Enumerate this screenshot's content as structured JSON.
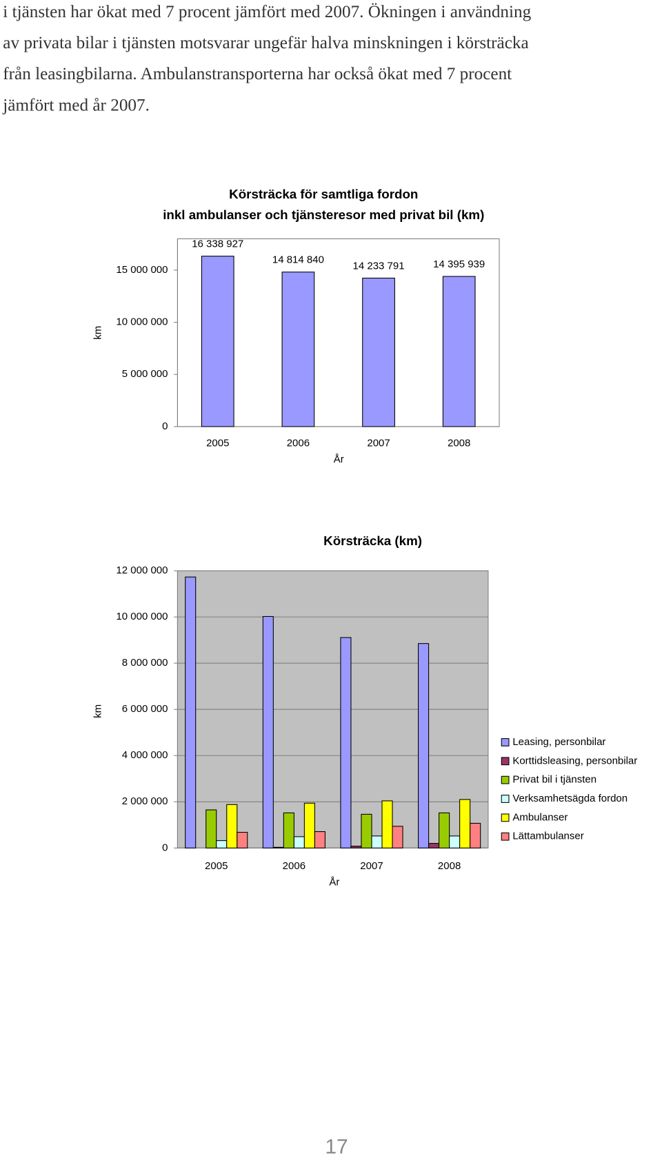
{
  "text": [
    "i tjänsten har ökat med 7 procent jämfört med 2007. Ökningen i användning",
    "av privata bilar i tjänsten motsvarar ungefär halva minskningen i körsträcka",
    "från leasingbilarna. Ambulanstransporterna har också ökat med 7 procent",
    "jämfört med år 2007."
  ],
  "chart_data": [
    {
      "type": "bar",
      "title": [
        "Körsträcka för samtliga fordon",
        "inkl ambulanser och tjänsteresor med privat bil (km)"
      ],
      "categories": [
        "2005",
        "2006",
        "2007",
        "2008"
      ],
      "values": [
        16338927,
        14814840,
        14233791,
        14395939
      ],
      "value_labels": [
        "16 338 927",
        "14 814 840",
        "14 233 791",
        "14 395 939"
      ],
      "color": "#9999ff",
      "xlabel": "År",
      "ylabel": "km",
      "ylim": [
        0,
        18000000
      ],
      "yticks": [
        0,
        {
          "value": 5000000,
          "label": "5 000 000"
        },
        {
          "value": 10000000,
          "label": "10 000 000"
        },
        {
          "value": 15000000,
          "label": "15 000 000"
        }
      ],
      "grid": false
    },
    {
      "type": "bar",
      "title": [
        "Körsträcka (km)"
      ],
      "categories": [
        "2005",
        "2006",
        "2007",
        "2008"
      ],
      "series": [
        {
          "name": "Leasing, personbilar",
          "color": "#9999ff",
          "values": [
            11730000,
            10020000,
            9110000,
            8850000
          ]
        },
        {
          "name": "Korttidsleasing, personbilar",
          "color": "#993366",
          "values": [
            0,
            30000,
            80000,
            200000
          ]
        },
        {
          "name": "Privat bil i tjänsten",
          "color": "#99cc00",
          "values": [
            1650000,
            1520000,
            1460000,
            1520000
          ]
        },
        {
          "name": "Verksamhetsägda fordon",
          "color": "#ccffff",
          "values": [
            320000,
            490000,
            520000,
            520000
          ]
        },
        {
          "name": "Ambulanser",
          "color": "#ffff00",
          "values": [
            1880000,
            1940000,
            2040000,
            2100000
          ]
        },
        {
          "name": "Lättambulanser",
          "color": "#ff8080",
          "values": [
            680000,
            710000,
            940000,
            1070000
          ]
        }
      ],
      "xlabel": "År",
      "ylabel": "km",
      "ylim": [
        0,
        12000000
      ],
      "yticks": [
        0,
        {
          "value": 2000000,
          "label": "2 000 000"
        },
        {
          "value": 4000000,
          "label": "4 000 000"
        },
        {
          "value": 6000000,
          "label": "6 000 000"
        },
        {
          "value": 8000000,
          "label": "8 000 000"
        },
        {
          "value": 10000000,
          "label": "10 000 000"
        },
        {
          "value": 12000000,
          "label": "12 000 000"
        }
      ],
      "grid": true,
      "legend": "right"
    }
  ],
  "page_number": "17"
}
